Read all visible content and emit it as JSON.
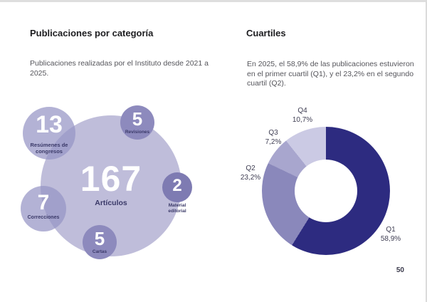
{
  "page": {
    "number": "50"
  },
  "sections": {
    "left": {
      "title": "Publicaciones por categoría",
      "desc": "Publicaciones realizadas por el Instituto desde 2021 a 2025."
    },
    "right": {
      "title": "Cuartiles",
      "desc": "En 2025, el 58,9% de las publicaciones estuvieron en el primer cuartil (Q1), y el 23,2% en el segundo cuartil (Q2)."
    }
  },
  "chart_data": [
    {
      "type": "bubble",
      "title": "Publicaciones por categoría",
      "items": [
        {
          "label": "Artículos",
          "value": 167
        },
        {
          "label": "Resúmenes de congresos",
          "value": 13
        },
        {
          "label": "Correcciones",
          "value": 7
        },
        {
          "label": "Revisiones",
          "value": 5
        },
        {
          "label": "Cartas",
          "value": 5
        },
        {
          "label": "Material editorial",
          "value": 2
        }
      ],
      "colors": {
        "large_bubble": "#bfbdda",
        "light_bubble": "#b3b2d5",
        "dark_bubble": "#8d8abd",
        "darkest_bubble": "#7e7bb2",
        "number_text": "#ffffff",
        "label_text": "#3a3968"
      }
    },
    {
      "type": "pie",
      "subtype": "donut",
      "title": "Cuartiles",
      "categories": [
        "Q1",
        "Q2",
        "Q3",
        "Q4"
      ],
      "values": [
        58.9,
        23.2,
        7.2,
        10.7
      ],
      "value_labels": [
        "58,9%",
        "23,2%",
        "7,2%",
        "10,7%"
      ],
      "colors": [
        "#2d2b80",
        "#8a88bb",
        "#a8a6ce",
        "#cbcae4"
      ],
      "start_angle_deg": 0,
      "direction": "clockwise",
      "inner_radius_ratio": 0.49,
      "legend": "outside-labels"
    }
  ]
}
